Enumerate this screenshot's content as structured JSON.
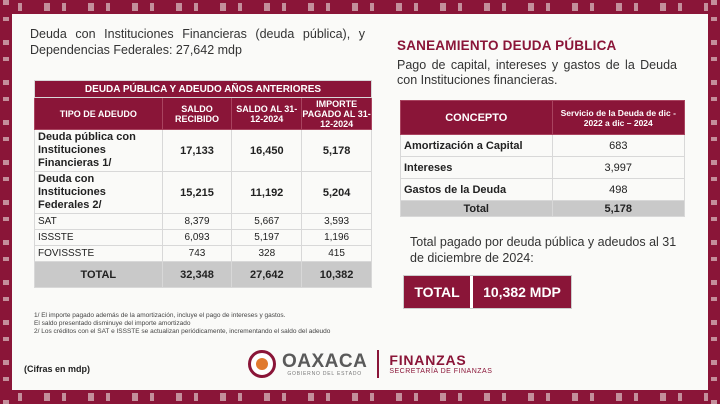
{
  "intro": "Deuda con Instituciones Financieras (deuda pública), y Dependencias Federales: 27,642 mdp",
  "left_table": {
    "title": "DEUDA PÚBLICA Y ADEUDO AÑOS ANTERIORES",
    "headers": [
      "TIPO DE ADEUDO",
      "SALDO RECIBIDO",
      "SALDO AL 31-12-2024",
      "IMPORTE PAGADO AL 31-12-2024"
    ],
    "rows": [
      {
        "label": "Deuda pública con Instituciones Financieras 1/",
        "v1": "17,133",
        "v2": "16,450",
        "v3": "5,178"
      },
      {
        "label": "Deuda con Instituciones Federales 2/",
        "v1": "15,215",
        "v2": "11,192",
        "v3": "5,204"
      },
      {
        "label": "SAT",
        "v1": "8,379",
        "v2": "5,667",
        "v3": "3,593"
      },
      {
        "label": "ISSSTE",
        "v1": "6,093",
        "v2": "5,197",
        "v3": "1,196"
      },
      {
        "label": "FOVISSSTE",
        "v1": "743",
        "v2": "328",
        "v3": "415"
      }
    ],
    "total": {
      "label": "TOTAL",
      "v1": "32,348",
      "v2": "27,642",
      "v3": "10,382"
    }
  },
  "notes": [
    "1/ El importe pagado además de la amortización, incluye el pago de intereses y gastos.",
    "El saldo presentado disminuye del importe amortizado",
    "2/ Los créditos con el SAT e ISSSTE se actualizan periódicamente, incrementando el saldo del adeudo"
  ],
  "cifras": "(Cifras en mdp)",
  "right": {
    "title": "SANEAMIENTO DEUDA PÚBLICA",
    "intro": "Pago de capital, intereses y gastos de la Deuda con Instituciones financieras.",
    "headers": [
      "CONCEPTO",
      "Servicio de la Deuda de dic - 2022 a dic – 2024"
    ],
    "rows": [
      {
        "label": "Amortización a Capital",
        "value": "683"
      },
      {
        "label": "Intereses",
        "value": "3,997"
      },
      {
        "label": "Gastos de la Deuda",
        "value": "498"
      }
    ],
    "total": {
      "label": "Total",
      "value": "5,178"
    },
    "total_text": "Total pagado por deuda pública y adeudos al 31 de diciembre de 2024:",
    "total_box": {
      "label": "TOTAL",
      "value": "10,382 MDP"
    }
  },
  "logo": {
    "oaxaca": "OAXACA",
    "gobierno": "GOBIERNO DEL ESTADO",
    "finanzas": "FINANZAS",
    "secretaria": "SECRETARÍA DE FINANZAS"
  },
  "colors": {
    "brand": "#8a1538",
    "total_row": "#c9c9c9"
  }
}
